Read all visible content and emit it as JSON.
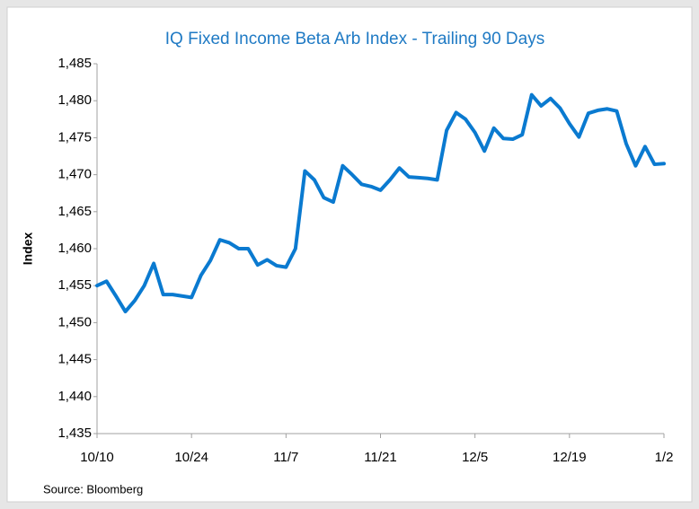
{
  "chart_data": {
    "type": "line",
    "title": "IQ Fixed Income Beta Arb Index - Trailing 90 Days",
    "y_label": "Index",
    "source": "Source: Bloomberg",
    "categories": [
      "10/10",
      null,
      null,
      null,
      null,
      null,
      null,
      null,
      null,
      null,
      "10/24",
      null,
      null,
      null,
      null,
      null,
      null,
      null,
      null,
      null,
      "11/7",
      null,
      null,
      null,
      null,
      null,
      null,
      null,
      null,
      null,
      "11/21",
      null,
      null,
      null,
      null,
      null,
      null,
      null,
      null,
      null,
      "12/5",
      null,
      null,
      null,
      null,
      null,
      null,
      null,
      null,
      null,
      "12/19",
      null,
      null,
      null,
      null,
      null,
      null,
      null,
      null,
      null,
      "1/2"
    ],
    "series": [
      {
        "name": "Index",
        "color": "#0a7ad0",
        "values": [
          1455.0,
          1455.6,
          1453.6,
          1451.5,
          1453.0,
          1455.0,
          1458.0,
          1453.8,
          1453.8,
          1453.6,
          1453.4,
          1456.4,
          1458.4,
          1461.2,
          1460.8,
          1460.0,
          1460.0,
          1457.8,
          1458.5,
          1457.7,
          1457.5,
          1460.0,
          1470.5,
          1469.3,
          1466.9,
          1466.3,
          1471.2,
          1470.0,
          1468.7,
          1468.4,
          1467.9,
          1469.3,
          1470.9,
          1469.7,
          1469.6,
          1469.5,
          1469.3,
          1476.0,
          1478.4,
          1477.5,
          1475.7,
          1473.2,
          1476.3,
          1474.9,
          1474.8,
          1475.4,
          1480.8,
          1479.3,
          1480.3,
          1479.0,
          1476.9,
          1475.1,
          1478.3,
          1478.7,
          1478.9,
          1478.6,
          1474.2,
          1471.2,
          1473.8,
          1471.4,
          1471.5
        ]
      }
    ],
    "ylim": [
      1435,
      1485
    ],
    "yticks": [
      {
        "value": 1435,
        "label": "1,435"
      },
      {
        "value": 1440,
        "label": "1,440"
      },
      {
        "value": 1445,
        "label": "1,445"
      },
      {
        "value": 1450,
        "label": "1,450"
      },
      {
        "value": 1455,
        "label": "1,455"
      },
      {
        "value": 1460,
        "label": "1,460"
      },
      {
        "value": 1465,
        "label": "1,465"
      },
      {
        "value": 1470,
        "label": "1,470"
      },
      {
        "value": 1475,
        "label": "1,475"
      },
      {
        "value": 1480,
        "label": "1,480"
      },
      {
        "value": 1485,
        "label": "1,485"
      }
    ],
    "grid": false
  }
}
